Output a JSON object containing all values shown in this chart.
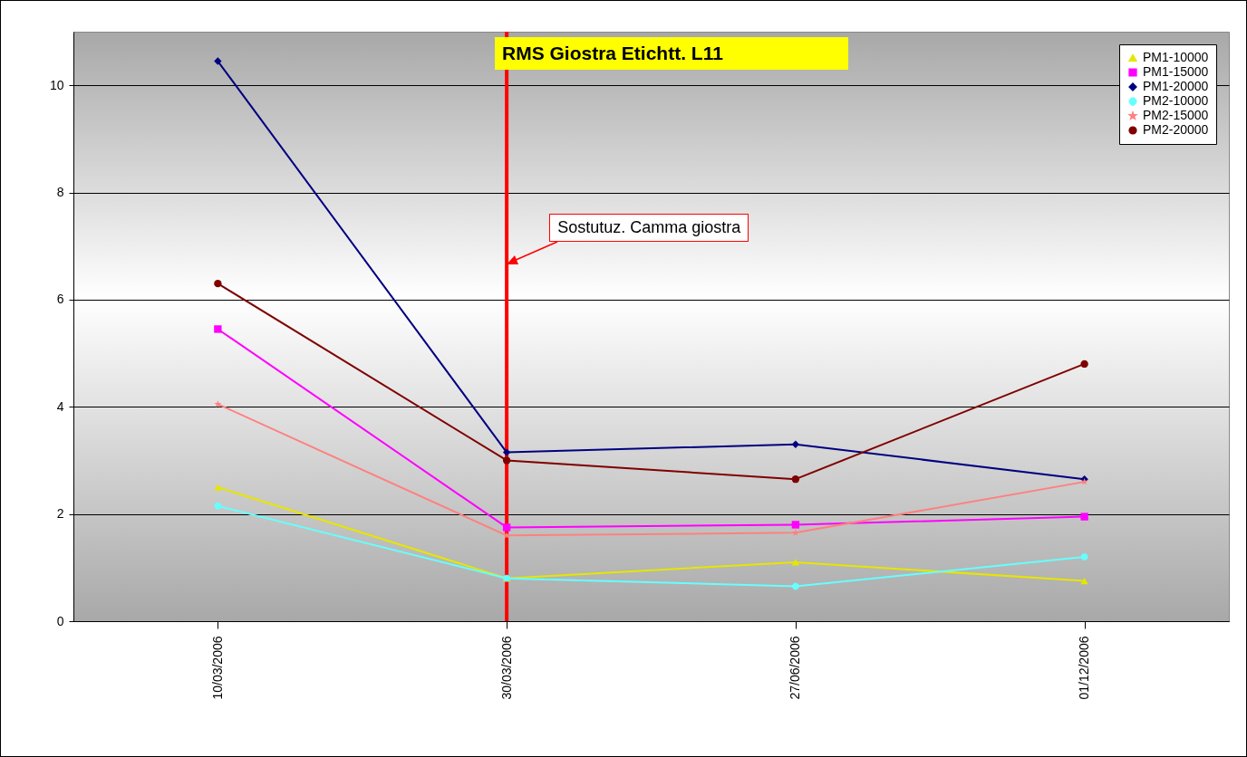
{
  "chart_data": {
    "type": "line",
    "title": "RMS Giostra Etichtt. L11",
    "annotations": [
      {
        "text": "Sostutuz. Camma giostra",
        "x": "30/03/2006",
        "y": 6.65
      }
    ],
    "categories": [
      "10/03/2006",
      "30/03/2006",
      "27/06/2006",
      "01/12/2006"
    ],
    "series": [
      {
        "name": "PM1-10000",
        "color": "#e6e600",
        "marker": "triangle",
        "values": [
          2.5,
          0.8,
          1.1,
          0.75
        ]
      },
      {
        "name": "PM1-15000",
        "color": "#ff00ff",
        "marker": "square",
        "values": [
          5.45,
          1.75,
          1.8,
          1.95
        ]
      },
      {
        "name": "PM1-20000",
        "color": "#000080",
        "marker": "diamond",
        "values": [
          10.45,
          3.15,
          3.3,
          2.65
        ]
      },
      {
        "name": "PM2-10000",
        "color": "#66ffff",
        "marker": "cross",
        "values": [
          2.15,
          0.8,
          0.65,
          1.2
        ]
      },
      {
        "name": "PM2-15000",
        "color": "#ff8080",
        "marker": "star",
        "values": [
          4.05,
          1.6,
          1.65,
          2.6
        ]
      },
      {
        "name": "PM2-20000",
        "color": "#800000",
        "marker": "circle",
        "values": [
          6.3,
          3.0,
          2.65,
          4.8
        ]
      }
    ],
    "ylim": [
      0,
      11
    ],
    "yticks": [
      0,
      2,
      4,
      6,
      8,
      10
    ],
    "grid": "y",
    "legend": "top right",
    "ref_lines": [
      {
        "axis": "x",
        "value": "30/03/2006",
        "color": "#ff0000"
      }
    ]
  }
}
